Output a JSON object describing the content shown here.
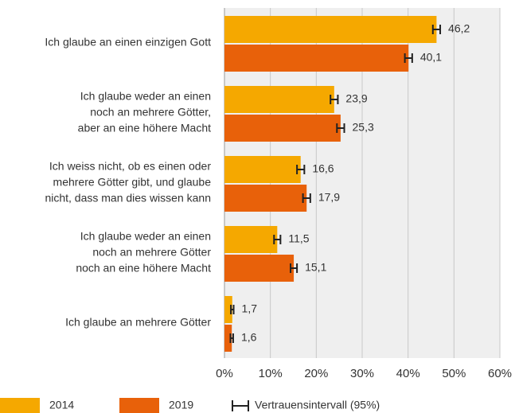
{
  "chart_data": {
    "type": "hbar",
    "categories": [
      [
        "Ich glaube an einen einzigen Gott"
      ],
      [
        "Ich glaube weder an einen",
        "noch an mehrere Götter,",
        "aber an eine höhere Macht"
      ],
      [
        "Ich weiss nicht, ob es einen oder",
        "mehrere Götter gibt, und glaube",
        "nicht, dass man dies wissen kann"
      ],
      [
        "Ich glaube weder an einen",
        "noch an mehrere Götter",
        "noch an eine höhere Macht"
      ],
      [
        "Ich glaube an mehrere Götter"
      ]
    ],
    "series": [
      {
        "name": "2014",
        "color": "#f5a800",
        "values": [
          46.2,
          23.9,
          16.6,
          11.5,
          1.7
        ],
        "value_labels": [
          "46,2",
          "23,9",
          "16,6",
          "11,5",
          "1,7"
        ],
        "errors": [
          0.8,
          0.8,
          0.8,
          0.7,
          0.3
        ]
      },
      {
        "name": "2019",
        "color": "#e8610a",
        "values": [
          40.1,
          25.3,
          17.9,
          15.1,
          1.6
        ],
        "value_labels": [
          "40,1",
          "25,3",
          "17,9",
          "15,1",
          "1,6"
        ],
        "errors": [
          0.8,
          0.8,
          0.8,
          0.7,
          0.3
        ]
      }
    ],
    "ci_label": "Vertrauensintervall (95%)",
    "xlim": [
      0,
      60
    ],
    "xticks": [
      {
        "value": 0,
        "label": "0%"
      },
      {
        "value": 10,
        "label": "10%"
      },
      {
        "value": 20,
        "label": "20%"
      },
      {
        "value": 30,
        "label": "30%"
      },
      {
        "value": 40,
        "label": "40%"
      },
      {
        "value": 50,
        "label": "50%"
      },
      {
        "value": 60,
        "label": "60%"
      }
    ],
    "grid": true
  }
}
